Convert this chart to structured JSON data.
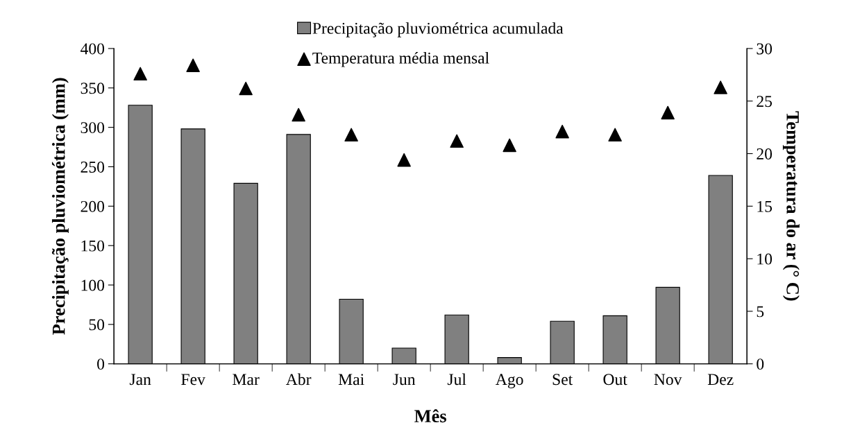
{
  "chart_data": {
    "type": "bar",
    "xlabel": "Mês",
    "ylabel": "Precipitação pluviométrica (mm)",
    "y2label": "Temperatura do ar (° C)",
    "categories": [
      "Jan",
      "Fev",
      "Mar",
      "Abr",
      "Mai",
      "Jun",
      "Jul",
      "Ago",
      "Set",
      "Out",
      "Nov",
      "Dez"
    ],
    "series": [
      {
        "name": "Precipitação pluviométrica acumulada",
        "color": "#808080",
        "values": [
          328,
          298,
          229,
          291,
          82,
          20,
          62,
          8,
          54,
          61,
          97,
          239
        ]
      },
      {
        "name": "Temperatura média mensal",
        "type": "scatter",
        "axis": "y2",
        "marker": "triangle",
        "color": "#000000",
        "values": [
          27.6,
          28.4,
          26.2,
          23.7,
          21.8,
          19.4,
          21.2,
          20.8,
          22.1,
          21.8,
          23.9,
          26.3
        ]
      }
    ],
    "ylim": [
      0,
      400
    ],
    "yticks": [
      0,
      50,
      100,
      150,
      200,
      250,
      300,
      350,
      400
    ],
    "y2lim": [
      0,
      30
    ],
    "y2ticks": [
      0,
      5,
      10,
      15,
      20,
      25,
      30
    ],
    "grid": false,
    "legend": "top"
  }
}
